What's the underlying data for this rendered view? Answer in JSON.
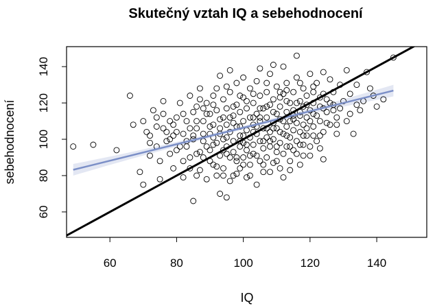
{
  "chart_data": {
    "type": "scatter",
    "title": "Skutečný vztah IQ a sebehodnocení",
    "xlabel": "IQ",
    "ylabel": "sebehodnocení",
    "xlim": [
      47,
      155
    ],
    "ylim": [
      46,
      151
    ],
    "xticks": [
      60,
      80,
      100,
      120,
      140
    ],
    "yticks": [
      60,
      80,
      100,
      120,
      140
    ],
    "grid": false,
    "point_color": "#000000",
    "identity_line": {
      "x1": 47,
      "y1": 47,
      "x2": 155,
      "y2": 155,
      "color": "#000000"
    },
    "regression": {
      "color": "#7b8fc7",
      "band_color": "#e3e7f3",
      "x_start": 49,
      "x_end": 145,
      "y_start": 83.2,
      "y_end": 126.8,
      "ci_half_width_edge": 3.2,
      "ci_half_width_center": 1.0
    },
    "points": [
      [
        49,
        96
      ],
      [
        55,
        97
      ],
      [
        62,
        94
      ],
      [
        66,
        124
      ],
      [
        67,
        108
      ],
      [
        69,
        82
      ],
      [
        70,
        75
      ],
      [
        70,
        110
      ],
      [
        72,
        91
      ],
      [
        72,
        102
      ],
      [
        73,
        116
      ],
      [
        74,
        112
      ],
      [
        74,
        96
      ],
      [
        75,
        88
      ],
      [
        75,
        78
      ],
      [
        76,
        106
      ],
      [
        76,
        121
      ],
      [
        77,
        99
      ],
      [
        78,
        92
      ],
      [
        78,
        110
      ],
      [
        79,
        84
      ],
      [
        79,
        102
      ],
      [
        80,
        112
      ],
      [
        80,
        94
      ],
      [
        81,
        120
      ],
      [
        82,
        88
      ],
      [
        82,
        103
      ],
      [
        82,
        79
      ],
      [
        83,
        110
      ],
      [
        83,
        96
      ],
      [
        84,
        124
      ],
      [
        84,
        84
      ],
      [
        85,
        115
      ],
      [
        85,
        100
      ],
      [
        85,
        66
      ],
      [
        86,
        92
      ],
      [
        86,
        106
      ],
      [
        86,
        118
      ],
      [
        87,
        83
      ],
      [
        87,
        128
      ],
      [
        88,
        99
      ],
      [
        88,
        110
      ],
      [
        88,
        90
      ],
      [
        89,
        120
      ],
      [
        89,
        78
      ],
      [
        90,
        103
      ],
      [
        90,
        114
      ],
      [
        90,
        94
      ],
      [
        91,
        86
      ],
      [
        91,
        108
      ],
      [
        91,
        124
      ],
      [
        92,
        98
      ],
      [
        92,
        116
      ],
      [
        92,
        80
      ],
      [
        93,
        106
      ],
      [
        93,
        91
      ],
      [
        93,
        135
      ],
      [
        93,
        70
      ],
      [
        94,
        112
      ],
      [
        94,
        100
      ],
      [
        94,
        122
      ],
      [
        94,
        84
      ],
      [
        95,
        96
      ],
      [
        95,
        108
      ],
      [
        95,
        117
      ],
      [
        95,
        68
      ],
      [
        96,
        90
      ],
      [
        96,
        104
      ],
      [
        96,
        126
      ],
      [
        97,
        99
      ],
      [
        97,
        113
      ],
      [
        97,
        80
      ],
      [
        97,
        93
      ],
      [
        98,
        107
      ],
      [
        98,
        119
      ],
      [
        98,
        88
      ],
      [
        98,
        131
      ],
      [
        99,
        102
      ],
      [
        99,
        96
      ],
      [
        99,
        115
      ],
      [
        99,
        84
      ],
      [
        100,
        110
      ],
      [
        100,
        98
      ],
      [
        100,
        123
      ],
      [
        100,
        90
      ],
      [
        101,
        105
      ],
      [
        101,
        117
      ],
      [
        101,
        79
      ],
      [
        101,
        94
      ],
      [
        102,
        101
      ],
      [
        102,
        112
      ],
      [
        102,
        128
      ],
      [
        102,
        86
      ],
      [
        103,
        108
      ],
      [
        103,
        97
      ],
      [
        103,
        120
      ],
      [
        103,
        92
      ],
      [
        104,
        103
      ],
      [
        104,
        114
      ],
      [
        104,
        132
      ],
      [
        104,
        75
      ],
      [
        105,
        99
      ],
      [
        105,
        110
      ],
      [
        105,
        88
      ],
      [
        105,
        124
      ],
      [
        106,
        106
      ],
      [
        106,
        95
      ],
      [
        106,
        117
      ],
      [
        106,
        82
      ],
      [
        107,
        112
      ],
      [
        107,
        101
      ],
      [
        107,
        126
      ],
      [
        107,
        90
      ],
      [
        108,
        104
      ],
      [
        108,
        119
      ],
      [
        108,
        96
      ],
      [
        108,
        136
      ],
      [
        109,
        109
      ],
      [
        109,
        87
      ],
      [
        109,
        122
      ],
      [
        109,
        100
      ],
      [
        110,
        114
      ],
      [
        110,
        93
      ],
      [
        110,
        129
      ],
      [
        110,
        106
      ],
      [
        111,
        98
      ],
      [
        111,
        118
      ],
      [
        111,
        84
      ],
      [
        111,
        111
      ],
      [
        112,
        103
      ],
      [
        112,
        125
      ],
      [
        112,
        92
      ],
      [
        112,
        140
      ],
      [
        113,
        115
      ],
      [
        113,
        107
      ],
      [
        113,
        96
      ],
      [
        113,
        131
      ],
      [
        114,
        110
      ],
      [
        114,
        120
      ],
      [
        114,
        88
      ],
      [
        114,
        101
      ],
      [
        115,
        116
      ],
      [
        115,
        105
      ],
      [
        115,
        126
      ],
      [
        115,
        94
      ],
      [
        116,
        109
      ],
      [
        116,
        134
      ],
      [
        116,
        99
      ],
      [
        116,
        146
      ],
      [
        117,
        113
      ],
      [
        117,
        121
      ],
      [
        117,
        86
      ],
      [
        117,
        104
      ],
      [
        118,
        118
      ],
      [
        118,
        108
      ],
      [
        118,
        128
      ],
      [
        118,
        97
      ],
      [
        119,
        112
      ],
      [
        119,
        124
      ],
      [
        119,
        102
      ],
      [
        120,
        116
      ],
      [
        120,
        136
      ],
      [
        120,
        91
      ],
      [
        121,
        120
      ],
      [
        121,
        107
      ],
      [
        121,
        129
      ],
      [
        122,
        113
      ],
      [
        122,
        99
      ],
      [
        122,
        131
      ],
      [
        123,
        118
      ],
      [
        123,
        110
      ],
      [
        123,
        95
      ],
      [
        124,
        125
      ],
      [
        124,
        137
      ],
      [
        124,
        89
      ],
      [
        125,
        115
      ],
      [
        125,
        122
      ],
      [
        126,
        108
      ],
      [
        126,
        133
      ],
      [
        127,
        119
      ],
      [
        127,
        126
      ],
      [
        128,
        112
      ],
      [
        128,
        103
      ],
      [
        129,
        130
      ],
      [
        129,
        117
      ],
      [
        130,
        121
      ],
      [
        131,
        138
      ],
      [
        131,
        110
      ],
      [
        132,
        125
      ],
      [
        133,
        103
      ],
      [
        134,
        130
      ],
      [
        135,
        116
      ],
      [
        136,
        121
      ],
      [
        137,
        137
      ],
      [
        138,
        128
      ],
      [
        139,
        124
      ],
      [
        140,
        118
      ],
      [
        142,
        122
      ],
      [
        145,
        145
      ],
      [
        88,
        103
      ],
      [
        92,
        85
      ],
      [
        96,
        77
      ],
      [
        100,
        86
      ],
      [
        104,
        91
      ],
      [
        108,
        82
      ],
      [
        112,
        79
      ],
      [
        116,
        92
      ],
      [
        84,
        90
      ],
      [
        86,
        80
      ],
      [
        90,
        107
      ],
      [
        94,
        94
      ],
      [
        98,
        81
      ],
      [
        102,
        91
      ],
      [
        106,
        99
      ],
      [
        110,
        88
      ],
      [
        114,
        96
      ],
      [
        118,
        91
      ],
      [
        80,
        104
      ],
      [
        78,
        100
      ],
      [
        82,
        114
      ],
      [
        84,
        106
      ],
      [
        86,
        110
      ],
      [
        89,
        96
      ],
      [
        91,
        101
      ],
      [
        93,
        103
      ],
      [
        95,
        101
      ],
      [
        97,
        109
      ],
      [
        99,
        107
      ],
      [
        101,
        97
      ],
      [
        103,
        112
      ],
      [
        105,
        117
      ],
      [
        107,
        106
      ],
      [
        109,
        115
      ],
      [
        111,
        104
      ],
      [
        113,
        102
      ],
      [
        115,
        111
      ],
      [
        117,
        97
      ],
      [
        119,
        106
      ],
      [
        121,
        114
      ],
      [
        123,
        102
      ],
      [
        125,
        109
      ],
      [
        127,
        116
      ],
      [
        103,
        125
      ],
      [
        107,
        131
      ],
      [
        111,
        126
      ],
      [
        99,
        124
      ],
      [
        95,
        129
      ],
      [
        91,
        119
      ],
      [
        87,
        122
      ],
      [
        105,
        139
      ],
      [
        109,
        141
      ],
      [
        100,
        134
      ],
      [
        96,
        138
      ],
      [
        113,
        127
      ],
      [
        117,
        131
      ],
      [
        121,
        126
      ],
      [
        97,
        118
      ],
      [
        101,
        121
      ],
      [
        105,
        112
      ],
      [
        109,
        106
      ],
      [
        113,
        121
      ],
      [
        117,
        115
      ],
      [
        121,
        102
      ],
      [
        93,
        111
      ],
      [
        89,
        114
      ],
      [
        85,
        102
      ],
      [
        83,
        99
      ],
      [
        81,
        96
      ],
      [
        79,
        108
      ],
      [
        77,
        104
      ],
      [
        76,
        114
      ],
      [
        74,
        107
      ],
      [
        72,
        98
      ],
      [
        71,
        104
      ],
      [
        90,
        88
      ],
      [
        94,
        80
      ],
      [
        98,
        90
      ],
      [
        102,
        80
      ],
      [
        106,
        86
      ],
      [
        110,
        96
      ],
      [
        114,
        83
      ],
      [
        118,
        102
      ],
      [
        120,
        96
      ],
      [
        124,
        104
      ],
      [
        128,
        108
      ],
      [
        132,
        114
      ],
      [
        134,
        119
      ],
      [
        88,
        117
      ],
      [
        92,
        128
      ],
      [
        96,
        112
      ],
      [
        100,
        102
      ],
      [
        104,
        107
      ],
      [
        108,
        99
      ],
      [
        112,
        110
      ],
      [
        116,
        120
      ],
      [
        120,
        110
      ],
      [
        124,
        117
      ],
      [
        87,
        93
      ],
      [
        91,
        97
      ],
      [
        95,
        92
      ],
      [
        99,
        99
      ],
      [
        103,
        104
      ],
      [
        107,
        118
      ],
      [
        111,
        123
      ],
      [
        115,
        113
      ],
      [
        119,
        119
      ],
      [
        123,
        123
      ],
      [
        126,
        120
      ]
    ]
  }
}
